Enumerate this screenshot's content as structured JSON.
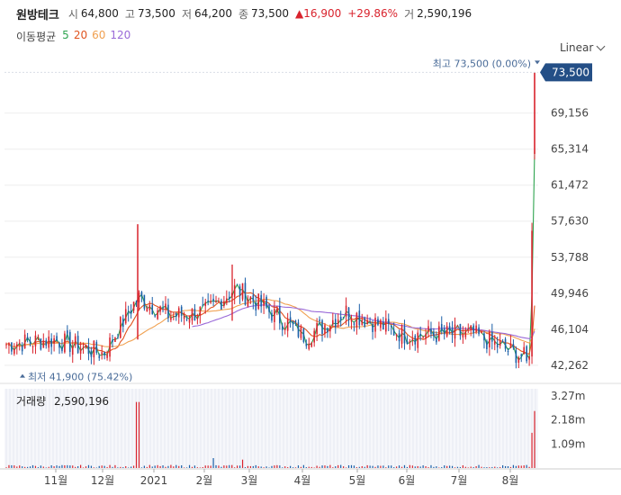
{
  "header": {
    "name": "원방테크",
    "open_label": "시",
    "open": "64,800",
    "high_label": "고",
    "high": "73,500",
    "low_label": "저",
    "low": "64,200",
    "close_label": "종",
    "close": "73,500",
    "change": "▲16,900",
    "change_pct": "+29.86%",
    "volume_label": "거",
    "volume": "2,590,196"
  },
  "ma_legend": {
    "title": "이동평균",
    "ma5": "5",
    "ma20": "20",
    "ma60": "60",
    "ma120": "120"
  },
  "scale_label": "Linear",
  "annotations": {
    "high_text": "최고 73,500 (0.00%)",
    "low_text": "최저 41,900 (75.42%)",
    "current_price": "73,500"
  },
  "volume_panel": {
    "label": "거래량",
    "value": "2,590,196"
  },
  "colors": {
    "up": "#d9232d",
    "down": "#1a5fa8",
    "ma5": "#2ea44f",
    "ma20": "#e0541f",
    "ma60": "#f0a050",
    "ma120": "#9a6ad8",
    "price_tag": "#244f86"
  },
  "chart_data": {
    "type": "candlestick",
    "ylim": [
      40900,
      74500
    ],
    "y_ticks": [
      "69,156",
      "65,314",
      "61,472",
      "57,630",
      "53,788",
      "49,946",
      "46,104",
      "42,262"
    ],
    "x_ticks": [
      "11월",
      "12월",
      "2021",
      "2월",
      "3월",
      "4월",
      "5월",
      "6월",
      "7월",
      "8월"
    ],
    "volume_ticks": [
      "3.27m",
      "2.18m",
      "1.09m"
    ],
    "volume_max": 3600000,
    "key_points": [
      {
        "date": "2020-10",
        "close": 44500
      },
      {
        "date": "2020-11",
        "close": 45000
      },
      {
        "date": "2020-12",
        "close": 43500
      },
      {
        "date": "2020-12-late",
        "high": 57300,
        "close": 49500,
        "volume": 3000000
      },
      {
        "date": "2021-01",
        "close": 47500
      },
      {
        "date": "2021-02",
        "close": 48000
      },
      {
        "date": "2021-03",
        "high": 53000,
        "close": 50500
      },
      {
        "date": "2021-04",
        "close": 45300
      },
      {
        "date": "2021-05",
        "close": 48000
      },
      {
        "date": "2021-06",
        "close": 45500
      },
      {
        "date": "2021-07",
        "close": 45600
      },
      {
        "date": "2021-08",
        "low": 41900,
        "close": 43000
      },
      {
        "date": "2021-08-last",
        "open": 64800,
        "high": 73500,
        "low": 64200,
        "close": 73500,
        "volume": 2590196
      }
    ]
  }
}
